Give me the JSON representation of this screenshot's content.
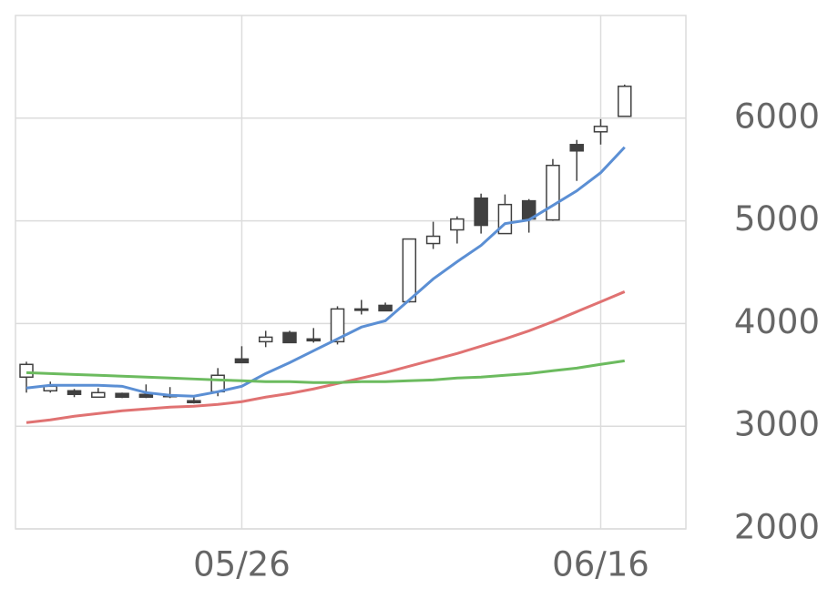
{
  "chart_data": {
    "type": "candlestick",
    "x": [
      null,
      null,
      null,
      null,
      null,
      null,
      null,
      null,
      null,
      "05/26",
      null,
      null,
      null,
      null,
      null,
      null,
      null,
      null,
      null,
      null,
      null,
      null,
      null,
      null,
      "06/16",
      null
    ],
    "open": [
      3478,
      3345,
      3345,
      3283,
      3319,
      3310,
      3301,
      3248,
      3336,
      3655,
      3823,
      3912,
      3850,
      3823,
      4142,
      4177,
      4212,
      4779,
      4912,
      5221,
      4876,
      5195,
      5009,
      5743,
      5867,
      6018
    ],
    "high": [
      3628,
      3434,
      3363,
      3372,
      3327,
      3407,
      3381,
      3292,
      3566,
      3779,
      3929,
      3929,
      3956,
      4168,
      4230,
      4204,
      4823,
      4991,
      5044,
      5265,
      5257,
      5212,
      5602,
      5788,
      5991,
      6327
    ],
    "low": [
      3327,
      3327,
      3283,
      3283,
      3274,
      3274,
      3274,
      3221,
      3292,
      3619,
      3770,
      3814,
      3814,
      3796,
      4088,
      4124,
      4204,
      4726,
      4779,
      4876,
      4876,
      4885,
      5000,
      5389,
      5743,
      6018
    ],
    "close": [
      3602,
      3389,
      3310,
      3327,
      3283,
      3283,
      3292,
      3230,
      3496,
      3619,
      3867,
      3814,
      3832,
      4142,
      4133,
      4124,
      4823,
      4850,
      5018,
      4956,
      5159,
      5018,
      5540,
      5681,
      5920,
      6310
    ],
    "up_color": "#ffffff",
    "down_color": "#404040",
    "series": [
      {
        "color": "#5b8fd4",
        "values": [
          3372,
          3398,
          3398,
          3398,
          3389,
          3327,
          3301,
          3292,
          3336,
          3389,
          3513,
          3619,
          3735,
          3850,
          3965,
          4027,
          4230,
          4434,
          4602,
          4761,
          4973,
          5009,
          5150,
          5292,
          5469,
          5717
        ]
      },
      {
        "color": "#e07272",
        "values": [
          3035,
          3062,
          3097,
          3124,
          3150,
          3168,
          3186,
          3195,
          3212,
          3239,
          3283,
          3319,
          3363,
          3416,
          3469,
          3522,
          3584,
          3646,
          3708,
          3779,
          3850,
          3929,
          4018,
          4115,
          4212,
          4310
        ]
      },
      {
        "color": "#6cbb5f",
        "values": [
          3522,
          3513,
          3504,
          3496,
          3487,
          3478,
          3469,
          3460,
          3451,
          3443,
          3434,
          3434,
          3425,
          3425,
          3434,
          3434,
          3443,
          3451,
          3469,
          3478,
          3496,
          3513,
          3540,
          3566,
          3602,
          3637
        ]
      }
    ],
    "ylim": [
      2000,
      7000
    ],
    "yticks": [
      2000,
      3000,
      4000,
      5000,
      6000
    ],
    "grid": true
  }
}
